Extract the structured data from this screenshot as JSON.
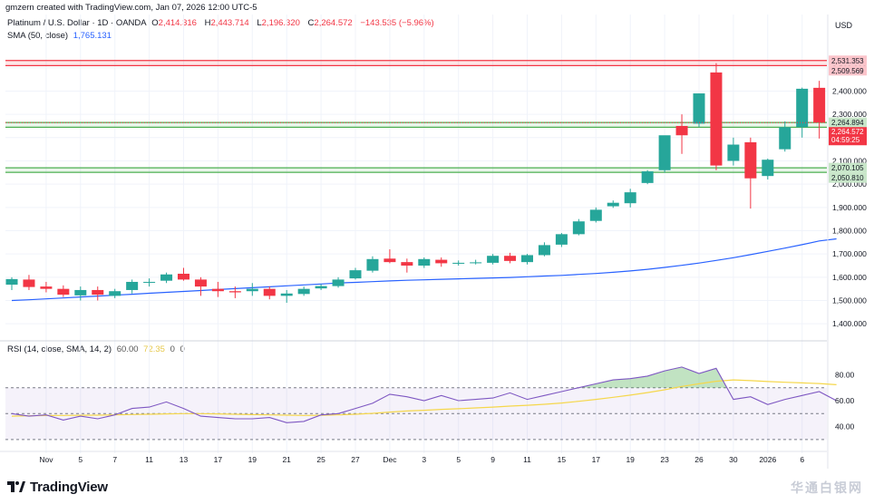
{
  "credit": "gmzern created with TradingView.com, Jan 07, 2026 12:00 UTC-5",
  "legend": {
    "symbol": "Platinum / U.S. Dollar · 1D · OANDA",
    "o_label": "O",
    "o_value": "2,414.316",
    "h_label": "H",
    "h_value": "2,443.714",
    "l_label": "L",
    "l_value": "2,196.320",
    "c_label": "C",
    "c_value": "2,264.572",
    "change": "−143.535 (−5.96%)",
    "sma_label": "SMA (50, close)",
    "sma_value": "1,765.131",
    "rsi_label": "RSI (14, close, SMA, 14, 2)",
    "rsi_value": "60.00",
    "rsi_sma_value": "72.35",
    "rsi_extra1": "0",
    "rsi_extra2": "0"
  },
  "colors": {
    "up": "#26a69a",
    "down": "#f23645",
    "sma": "#2962ff",
    "rsi": "#7e57c2",
    "rsi_sma": "#f5d74b",
    "zone_green": "#4caf50",
    "zone_red": "#f23645"
  },
  "footer": {
    "brand": "TradingView",
    "watermark": "华通白银网"
  },
  "chart_data": [
    {
      "type": "candlestick",
      "currency": "USD",
      "ylim": [
        1350,
        2620
      ],
      "y_ticks": [
        1400,
        1500,
        1600,
        1700,
        1800,
        1900,
        2000,
        2100,
        2200,
        2300,
        2400,
        2500
      ],
      "y_tick_labels": [
        "1,400.000",
        "1,500.000",
        "1,600.000",
        "1,700.000",
        "1,800.000",
        "1,900.000",
        "2,000.000",
        "2,100.000",
        "2,200.000",
        "2,300.000",
        "2,400.000",
        "2,500.000"
      ],
      "x_labels": [
        {
          "label": "Nov",
          "index": 2
        },
        {
          "label": "5",
          "index": 4
        },
        {
          "label": "7",
          "index": 6
        },
        {
          "label": "11",
          "index": 8
        },
        {
          "label": "13",
          "index": 10
        },
        {
          "label": "17",
          "index": 12
        },
        {
          "label": "19",
          "index": 14
        },
        {
          "label": "21",
          "index": 16
        },
        {
          "label": "25",
          "index": 18
        },
        {
          "label": "27",
          "index": 20
        },
        {
          "label": "Dec",
          "index": 22
        },
        {
          "label": "3",
          "index": 24
        },
        {
          "label": "5",
          "index": 26
        },
        {
          "label": "9",
          "index": 28
        },
        {
          "label": "11",
          "index": 30
        },
        {
          "label": "15",
          "index": 32
        },
        {
          "label": "17",
          "index": 34
        },
        {
          "label": "19",
          "index": 36
        },
        {
          "label": "23",
          "index": 38
        },
        {
          "label": "26",
          "index": 40
        },
        {
          "label": "30",
          "index": 42
        },
        {
          "label": "2026",
          "index": 44
        },
        {
          "label": "6",
          "index": 46
        }
      ],
      "candles": [
        {
          "o": 1568,
          "h": 1600,
          "l": 1545,
          "c": 1592
        },
        {
          "o": 1590,
          "h": 1610,
          "l": 1545,
          "c": 1558
        },
        {
          "o": 1560,
          "h": 1580,
          "l": 1535,
          "c": 1550
        },
        {
          "o": 1550,
          "h": 1565,
          "l": 1515,
          "c": 1525
        },
        {
          "o": 1522,
          "h": 1560,
          "l": 1500,
          "c": 1545
        },
        {
          "o": 1545,
          "h": 1560,
          "l": 1500,
          "c": 1525
        },
        {
          "o": 1520,
          "h": 1550,
          "l": 1510,
          "c": 1540
        },
        {
          "o": 1545,
          "h": 1590,
          "l": 1530,
          "c": 1580
        },
        {
          "o": 1578,
          "h": 1595,
          "l": 1560,
          "c": 1580
        },
        {
          "o": 1585,
          "h": 1620,
          "l": 1575,
          "c": 1612
        },
        {
          "o": 1615,
          "h": 1640,
          "l": 1585,
          "c": 1590
        },
        {
          "o": 1590,
          "h": 1600,
          "l": 1520,
          "c": 1560
        },
        {
          "o": 1550,
          "h": 1580,
          "l": 1515,
          "c": 1540
        },
        {
          "o": 1540,
          "h": 1560,
          "l": 1510,
          "c": 1535
        },
        {
          "o": 1540,
          "h": 1575,
          "l": 1520,
          "c": 1550
        },
        {
          "o": 1550,
          "h": 1560,
          "l": 1505,
          "c": 1520
        },
        {
          "o": 1520,
          "h": 1545,
          "l": 1490,
          "c": 1530
        },
        {
          "o": 1528,
          "h": 1560,
          "l": 1520,
          "c": 1550
        },
        {
          "o": 1552,
          "h": 1570,
          "l": 1545,
          "c": 1562
        },
        {
          "o": 1562,
          "h": 1600,
          "l": 1555,
          "c": 1590
        },
        {
          "o": 1595,
          "h": 1640,
          "l": 1590,
          "c": 1630
        },
        {
          "o": 1628,
          "h": 1690,
          "l": 1620,
          "c": 1678
        },
        {
          "o": 1680,
          "h": 1720,
          "l": 1660,
          "c": 1665
        },
        {
          "o": 1665,
          "h": 1680,
          "l": 1620,
          "c": 1650
        },
        {
          "o": 1650,
          "h": 1685,
          "l": 1640,
          "c": 1678
        },
        {
          "o": 1675,
          "h": 1685,
          "l": 1645,
          "c": 1660
        },
        {
          "o": 1658,
          "h": 1672,
          "l": 1650,
          "c": 1662
        },
        {
          "o": 1660,
          "h": 1675,
          "l": 1655,
          "c": 1664
        },
        {
          "o": 1662,
          "h": 1700,
          "l": 1655,
          "c": 1692
        },
        {
          "o": 1692,
          "h": 1705,
          "l": 1660,
          "c": 1670
        },
        {
          "o": 1665,
          "h": 1700,
          "l": 1655,
          "c": 1695
        },
        {
          "o": 1695,
          "h": 1750,
          "l": 1690,
          "c": 1738
        },
        {
          "o": 1740,
          "h": 1790,
          "l": 1730,
          "c": 1785
        },
        {
          "o": 1785,
          "h": 1850,
          "l": 1780,
          "c": 1840
        },
        {
          "o": 1842,
          "h": 1900,
          "l": 1835,
          "c": 1890
        },
        {
          "o": 1905,
          "h": 1930,
          "l": 1898,
          "c": 1920
        },
        {
          "o": 1918,
          "h": 1980,
          "l": 1900,
          "c": 1965
        },
        {
          "o": 2005,
          "h": 2060,
          "l": 2000,
          "c": 2055
        },
        {
          "o": 2060,
          "h": 2200,
          "l": 2050,
          "c": 2210
        },
        {
          "o": 2250,
          "h": 2300,
          "l": 2130,
          "c": 2210
        },
        {
          "o": 2260,
          "h": 2390,
          "l": 2245,
          "c": 2390
        },
        {
          "o": 2480,
          "h": 2520,
          "l": 2060,
          "c": 2080
        },
        {
          "o": 2100,
          "h": 2200,
          "l": 2080,
          "c": 2170
        },
        {
          "o": 2180,
          "h": 2200,
          "l": 1895,
          "c": 2025
        },
        {
          "o": 2035,
          "h": 2110,
          "l": 2020,
          "c": 2105
        },
        {
          "o": 2150,
          "h": 2270,
          "l": 2140,
          "c": 2245
        },
        {
          "o": 2245,
          "h": 2415,
          "l": 2200,
          "c": 2410
        },
        {
          "o": 2414,
          "h": 2444,
          "l": 2196,
          "c": 2265
        }
      ],
      "sma50": [
        1500,
        1503,
        1507,
        1511,
        1515,
        1519,
        1523,
        1527,
        1531,
        1535,
        1539,
        1543,
        1547,
        1551,
        1555,
        1559,
        1563,
        1567,
        1571,
        1575,
        1578,
        1581,
        1584,
        1587,
        1589,
        1591,
        1593,
        1595,
        1597,
        1599,
        1602,
        1605,
        1608,
        1612,
        1616,
        1621,
        1627,
        1634,
        1642,
        1651,
        1661,
        1672,
        1684,
        1697,
        1711,
        1725,
        1740,
        1756,
        1765
      ],
      "levels": [
        {
          "value": 2531.353,
          "label": "2,531.353",
          "color": "down"
        },
        {
          "value": 2509.569,
          "label": "2,509.569",
          "color": "down"
        },
        {
          "value": 2264.894,
          "label": "2,264.894",
          "color": "up"
        },
        {
          "value": 2244.504,
          "label": "2,244.504",
          "color": "up"
        },
        {
          "value": 2070.105,
          "label": "2,070.105",
          "color": "up"
        },
        {
          "value": 2050.81,
          "label": "2,050.810",
          "color": "up"
        }
      ],
      "last_price": {
        "value": 2264.572,
        "label": "2,264.572",
        "countdown": "04:59:25"
      }
    },
    {
      "type": "line",
      "name": "RSI",
      "ylim": [
        25,
        95
      ],
      "y_ticks": [
        40,
        60,
        80
      ],
      "y_tick_labels": [
        "40.00",
        "60.00",
        "80.00"
      ],
      "bands": [
        30,
        50,
        70
      ],
      "rsi": [
        50,
        48,
        49,
        45,
        48,
        46,
        49,
        54,
        55,
        59,
        54,
        48,
        47,
        46,
        46,
        47,
        43,
        44,
        49,
        50,
        54,
        58,
        65,
        63,
        60,
        64,
        60,
        61,
        62,
        66,
        61,
        64,
        67,
        70,
        73,
        76,
        77,
        79,
        83,
        86,
        81,
        85,
        61,
        63,
        57,
        61,
        64,
        67,
        60
      ],
      "rsi_sma": [
        48,
        48.3,
        48.5,
        48.6,
        48.7,
        48.8,
        49,
        49.3,
        49.5,
        49.8,
        50,
        50,
        49.8,
        49.5,
        49.2,
        49,
        48.8,
        48.6,
        48.7,
        49,
        49.5,
        50.2,
        51.2,
        52,
        52.6,
        53.3,
        53.8,
        54.4,
        55,
        55.8,
        56.4,
        57.2,
        58.2,
        59.5,
        61,
        62.6,
        64.3,
        66.2,
        68.4,
        71,
        73,
        75,
        76,
        75.5,
        74.8,
        74.2,
        73.7,
        73.2,
        72.35
      ]
    }
  ]
}
